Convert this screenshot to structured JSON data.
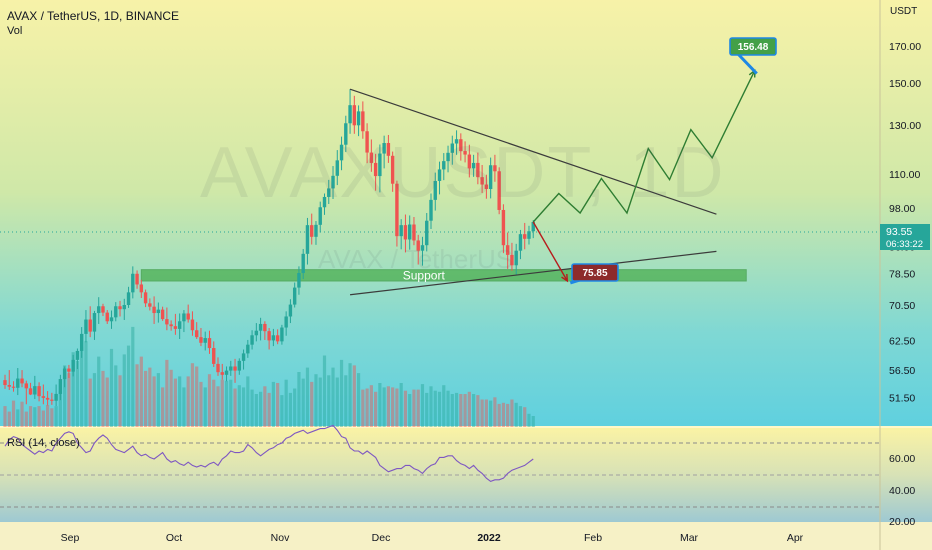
{
  "header": {
    "title": "AVAX / TetherUS, 1D, BINANCE",
    "volume_label": "Vol",
    "rsi_label": "RSI (14, close)",
    "currency": "USDT",
    "watermark_main": "AVAXUSDT, 1D",
    "watermark_sub": "AVAX / TetherUS"
  },
  "colors": {
    "up": "#26a69a",
    "down": "#ef5350",
    "trendline": "#3b3b3b",
    "rsi_line": "#7e57c2",
    "support_fill": "#4caf50",
    "target_up": "#43a047",
    "target_down": "#8d2b2b",
    "current_price_bg": "#26a69a"
  },
  "chart_data": {
    "type": "candlestick",
    "y_scale": "log",
    "price_axis_ticks": [
      "170.00",
      "150.00",
      "130.00",
      "110.00",
      "98.00",
      "86.00",
      "78.50",
      "70.50",
      "62.50",
      "56.50",
      "51.50"
    ],
    "rsi_axis_ticks": [
      "60.00",
      "40.00",
      "20.00"
    ],
    "x_axis_labels": [
      "Sep",
      "Oct",
      "Nov",
      "Dec",
      "2022",
      "Feb",
      "Mar",
      "Apr"
    ],
    "current_price": "93.55",
    "countdown": "06:33:22",
    "candles_ohlc": [
      [
        54.6,
        55.6,
        53.0,
        53.7
      ],
      [
        53.7,
        56.5,
        52.8,
        53.4
      ],
      [
        53.4,
        54.4,
        52.5,
        53.2
      ],
      [
        53.2,
        56.9,
        51.9,
        54.9
      ],
      [
        54.9,
        56.5,
        53.3,
        54.0
      ],
      [
        54.0,
        54.5,
        50.3,
        53.1
      ],
      [
        53.1,
        54.1,
        51.9,
        52.0
      ],
      [
        52.0,
        55.4,
        51.2,
        53.5
      ],
      [
        53.5,
        54.2,
        50.8,
        51.7
      ],
      [
        51.7,
        53.8,
        50.3,
        51.4
      ],
      [
        51.4,
        52.6,
        50.1,
        51.1
      ],
      [
        51.1,
        52.3,
        50.2,
        50.9
      ],
      [
        50.9,
        53.8,
        50.0,
        52.1
      ],
      [
        52.1,
        55.6,
        51.0,
        54.8
      ],
      [
        54.8,
        57.2,
        53.3,
        56.8
      ],
      [
        56.8,
        57.5,
        55.0,
        56.2
      ],
      [
        56.2,
        59.5,
        55.3,
        58.5
      ],
      [
        58.5,
        60.8,
        56.7,
        60.3
      ],
      [
        60.3,
        65.4,
        58.9,
        63.9
      ],
      [
        63.9,
        69.3,
        62.1,
        67.1
      ],
      [
        67.1,
        70.2,
        63.2,
        64.4
      ],
      [
        64.4,
        69.1,
        62.6,
        68.6
      ],
      [
        68.6,
        72.4,
        66.1,
        70.2
      ],
      [
        70.2,
        70.8,
        67.9,
        68.7
      ],
      [
        68.7,
        69.3,
        66.1,
        66.7
      ],
      [
        66.7,
        69.2,
        65.0,
        67.6
      ],
      [
        67.6,
        71.2,
        66.7,
        70.2
      ],
      [
        70.2,
        71.5,
        67.8,
        69.5
      ],
      [
        69.5,
        72.0,
        67.0,
        70.5
      ],
      [
        70.5,
        75.0,
        69.8,
        73.6
      ],
      [
        73.6,
        80.4,
        72.1,
        78.4
      ],
      [
        78.4,
        79.3,
        74.5,
        75.6
      ],
      [
        75.6,
        76.8,
        72.2,
        73.6
      ],
      [
        73.6,
        74.3,
        70.0,
        70.9
      ],
      [
        70.9,
        72.1,
        69.2,
        70.1
      ],
      [
        70.1,
        72.6,
        66.1,
        68.6
      ],
      [
        68.6,
        71.1,
        66.4,
        69.4
      ],
      [
        69.4,
        70.1,
        66.8,
        67.2
      ],
      [
        67.2,
        69.9,
        64.7,
        66.0
      ],
      [
        66.0,
        66.9,
        64.6,
        65.6
      ],
      [
        65.6,
        68.4,
        63.7,
        65.0
      ],
      [
        65.0,
        68.5,
        62.8,
        66.7
      ],
      [
        66.7,
        69.3,
        64.3,
        68.5
      ],
      [
        68.5,
        70.6,
        66.4,
        67.1
      ],
      [
        67.1,
        69.0,
        63.5,
        64.7
      ],
      [
        64.7,
        66.5,
        62.8,
        63.2
      ],
      [
        63.2,
        65.2,
        61.3,
        62.0
      ],
      [
        62.0,
        64.4,
        60.4,
        63.0
      ],
      [
        63.0,
        64.6,
        59.7,
        60.9
      ],
      [
        60.9,
        62.3,
        57.1,
        57.7
      ],
      [
        57.7,
        59.0,
        55.4,
        56.1
      ],
      [
        56.1,
        57.7,
        54.7,
        55.6
      ],
      [
        55.6,
        57.2,
        54.4,
        56.4
      ],
      [
        56.4,
        58.3,
        55.4,
        57.2
      ],
      [
        57.2,
        58.7,
        54.1,
        56.4
      ],
      [
        56.4,
        58.8,
        55.6,
        58.3
      ],
      [
        58.3,
        60.6,
        56.6,
        59.8
      ],
      [
        59.8,
        62.6,
        58.9,
        61.6
      ],
      [
        61.6,
        64.7,
        60.6,
        63.6
      ],
      [
        63.6,
        66.3,
        62.3,
        64.6
      ],
      [
        64.6,
        67.5,
        62.5,
        66.1
      ],
      [
        66.1,
        66.7,
        62.6,
        64.5
      ],
      [
        64.5,
        65.2,
        60.6,
        62.5
      ],
      [
        62.5,
        65.0,
        61.3,
        63.6
      ],
      [
        63.6,
        64.9,
        61.7,
        62.3
      ],
      [
        62.3,
        65.9,
        61.6,
        65.3
      ],
      [
        65.3,
        69.0,
        63.5,
        67.8
      ],
      [
        67.8,
        71.9,
        66.3,
        70.6
      ],
      [
        70.6,
        76.1,
        69.9,
        74.8
      ],
      [
        74.8,
        80.4,
        73.0,
        78.6
      ],
      [
        78.6,
        85.3,
        77.0,
        83.9
      ],
      [
        83.9,
        94.8,
        80.9,
        92.5
      ],
      [
        92.5,
        96.2,
        86.6,
        88.9
      ],
      [
        88.9,
        93.8,
        86.5,
        92.6
      ],
      [
        92.6,
        100.2,
        90.2,
        98.3
      ],
      [
        98.3,
        103.0,
        95.8,
        101.8
      ],
      [
        101.8,
        107.9,
        99.4,
        104.8
      ],
      [
        104.8,
        113.1,
        101.1,
        109.4
      ],
      [
        109.4,
        119.4,
        106.0,
        115.3
      ],
      [
        115.3,
        125.0,
        111.5,
        121.6
      ],
      [
        121.6,
        134.2,
        118.6,
        130.8
      ],
      [
        130.8,
        146.9,
        126.2,
        139.1
      ],
      [
        139.1,
        143.6,
        126.2,
        129.9
      ],
      [
        129.9,
        139.0,
        125.2,
        136.2
      ],
      [
        136.2,
        140.9,
        124.1,
        127.3
      ],
      [
        127.3,
        130.8,
        114.2,
        118.4
      ],
      [
        118.4,
        123.8,
        110.9,
        114.3
      ],
      [
        114.3,
        117.9,
        104.0,
        109.3
      ],
      [
        109.3,
        121.7,
        103.4,
        118.0
      ],
      [
        118.0,
        125.4,
        112.2,
        122.3
      ],
      [
        122.3,
        125.7,
        114.3,
        117.1
      ],
      [
        117.1,
        118.8,
        103.6,
        106.5
      ],
      [
        106.5,
        107.6,
        86.0,
        89.1
      ],
      [
        89.1,
        94.4,
        85.2,
        92.5
      ],
      [
        92.5,
        95.9,
        84.3,
        88.1
      ],
      [
        88.1,
        95.6,
        85.1,
        92.7
      ],
      [
        92.7,
        95.1,
        86.4,
        87.8
      ],
      [
        87.8,
        89.5,
        80.9,
        84.8
      ],
      [
        84.8,
        88.9,
        80.6,
        86.4
      ],
      [
        86.4,
        96.4,
        84.6,
        93.9
      ],
      [
        93.9,
        103.0,
        91.3,
        100.8
      ],
      [
        100.8,
        110.6,
        97.2,
        107.5
      ],
      [
        107.5,
        114.8,
        102.7,
        111.8
      ],
      [
        111.8,
        118.2,
        107.8,
        115.0
      ],
      [
        115.0,
        121.2,
        110.7,
        118.3
      ],
      [
        118.3,
        125.4,
        113.6,
        122.1
      ],
      [
        122.1,
        127.7,
        117.5,
        123.9
      ],
      [
        123.9,
        126.4,
        115.2,
        119.0
      ],
      [
        119.0,
        123.0,
        114.5,
        117.6
      ],
      [
        117.6,
        121.6,
        108.8,
        112.2
      ],
      [
        112.2,
        117.5,
        109.0,
        114.3
      ],
      [
        114.3,
        118.4,
        106.3,
        108.9
      ],
      [
        108.9,
        113.5,
        103.2,
        106.2
      ],
      [
        106.2,
        109.8,
        101.2,
        104.6
      ],
      [
        104.6,
        116.4,
        101.3,
        113.4
      ],
      [
        113.4,
        117.5,
        107.2,
        111.1
      ],
      [
        111.1,
        112.6,
        96.0,
        97.4
      ],
      [
        97.4,
        99.3,
        84.1,
        86.4
      ],
      [
        86.4,
        90.2,
        79.7,
        83.6
      ],
      [
        83.6,
        87.1,
        79.2,
        80.7
      ],
      [
        80.7,
        86.8,
        78.0,
        84.8
      ],
      [
        84.8,
        91.0,
        82.4,
        89.7
      ],
      [
        89.7,
        93.2,
        85.2,
        88.3
      ],
      [
        88.3,
        92.3,
        86.6,
        90.6
      ],
      [
        90.6,
        94.1,
        88.5,
        93.5
      ]
    ],
    "volume": [
      0.19,
      0.14,
      0.24,
      0.16,
      0.23,
      0.14,
      0.19,
      0.18,
      0.19,
      0.15,
      0.2,
      0.17,
      0.19,
      0.33,
      0.56,
      0.49,
      0.68,
      0.6,
      0.73,
      0.78,
      0.44,
      0.49,
      0.64,
      0.51,
      0.45,
      0.71,
      0.56,
      0.47,
      0.66,
      0.74,
      0.91,
      0.57,
      0.64,
      0.51,
      0.54,
      0.46,
      0.49,
      0.36,
      0.61,
      0.52,
      0.44,
      0.46,
      0.36,
      0.46,
      0.58,
      0.55,
      0.41,
      0.36,
      0.48,
      0.43,
      0.37,
      0.43,
      0.42,
      0.43,
      0.35,
      0.38,
      0.36,
      0.46,
      0.34,
      0.3,
      0.32,
      0.37,
      0.31,
      0.41,
      0.4,
      0.29,
      0.43,
      0.31,
      0.35,
      0.5,
      0.44,
      0.54,
      0.41,
      0.48,
      0.45,
      0.65,
      0.47,
      0.54,
      0.45,
      0.61,
      0.47,
      0.58,
      0.56,
      0.49,
      0.34,
      0.35,
      0.38,
      0.32,
      0.4,
      0.36,
      0.37,
      0.36,
      0.35,
      0.4,
      0.33,
      0.3,
      0.34,
      0.34,
      0.39,
      0.31,
      0.37,
      0.33,
      0.32,
      0.38,
      0.33,
      0.3,
      0.31,
      0.3,
      0.3,
      0.32,
      0.3,
      0.29,
      0.25,
      0.25,
      0.24,
      0.27,
      0.21,
      0.22,
      0.21,
      0.25,
      0.22,
      0.19,
      0.18,
      0.12,
      0.1
    ],
    "rsi": [
      58,
      62,
      64,
      63,
      59,
      57,
      55,
      53,
      55,
      54,
      56,
      55,
      60,
      63,
      66,
      67,
      66,
      60,
      57,
      54,
      55,
      60,
      63,
      65,
      63,
      59,
      56,
      55,
      54,
      56,
      58,
      54,
      52,
      53,
      51,
      50,
      52,
      54,
      50,
      48,
      49,
      47,
      46,
      48,
      46,
      45,
      46,
      45,
      47,
      48,
      46,
      50,
      52,
      55,
      54,
      54,
      55,
      59,
      57,
      54,
      52,
      54,
      56,
      57,
      59,
      60,
      63,
      64,
      66,
      67,
      68,
      66,
      67,
      68,
      69,
      69,
      70,
      71,
      68,
      64,
      63,
      57,
      55,
      55,
      53,
      55,
      53,
      51,
      46,
      44,
      42,
      43,
      44,
      44,
      46,
      46,
      44,
      43,
      41,
      44,
      46,
      47,
      51,
      51,
      52,
      52,
      49,
      47,
      46,
      44,
      46,
      43,
      41,
      38,
      36,
      37,
      37,
      38,
      41,
      43,
      44,
      45,
      46,
      48,
      50
    ],
    "annotations": {
      "resistance_line": [
        [
          81,
          146.9
        ],
        [
          167,
          96.0
        ]
      ],
      "support_line": [
        [
          81,
          73.0
        ],
        [
          167,
          84.6
        ]
      ],
      "support_zone": {
        "label": "Support",
        "from": 76.5,
        "to": 79.5,
        "x_start": 32,
        "x_end": 174
      },
      "projection_up": [
        [
          124,
          93.5
        ],
        [
          130,
          103
        ],
        [
          135,
          96.4
        ],
        [
          140,
          108.4
        ],
        [
          146,
          96.4
        ],
        [
          151,
          120
        ],
        [
          156,
          108
        ],
        [
          161,
          128
        ],
        [
          166,
          116.3
        ],
        [
          176,
          156.5
        ]
      ],
      "projection_down": [
        [
          124,
          93.5
        ],
        [
          132,
          76.5
        ]
      ],
      "target_up": "156.48",
      "target_down": "75.85"
    }
  }
}
